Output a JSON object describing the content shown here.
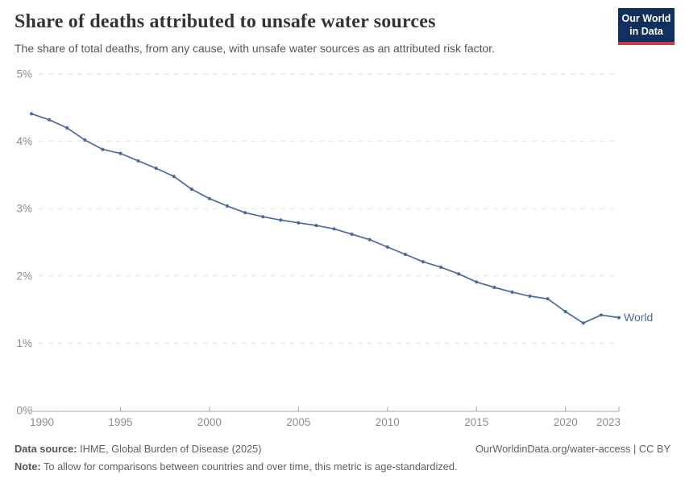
{
  "header": {
    "title": "Share of deaths attributed to unsafe water sources",
    "subtitle": "The share of total deaths, from any cause, with unsafe water sources as an attributed risk factor.",
    "logo": {
      "line1": "Our World",
      "line2": "in Data",
      "bg_color": "#12305e",
      "accent_color": "#cb3c4a"
    }
  },
  "chart_data": {
    "type": "line",
    "title": "Share of deaths attributed to unsafe water sources",
    "xlabel": "",
    "ylabel": "",
    "xlim": [
      1990,
      2023
    ],
    "ylim": [
      0,
      5
    ],
    "grid": "horizontal-dashed",
    "legend_position": "end-of-line",
    "x_ticks": [
      1990,
      1995,
      2000,
      2005,
      2010,
      2015,
      2020,
      2023
    ],
    "y_ticks": [
      "0%",
      "1%",
      "2%",
      "3%",
      "4%",
      "5%"
    ],
    "x": [
      1990,
      1991,
      1992,
      1993,
      1994,
      1995,
      1996,
      1997,
      1998,
      1999,
      2000,
      2001,
      2002,
      2003,
      2004,
      2005,
      2006,
      2007,
      2008,
      2009,
      2010,
      2011,
      2012,
      2013,
      2014,
      2015,
      2016,
      2017,
      2018,
      2019,
      2020,
      2021,
      2022,
      2023
    ],
    "series": [
      {
        "name": "World",
        "color": "#4c6a9d",
        "values": [
          4.41,
          4.32,
          4.2,
          4.02,
          3.88,
          3.82,
          3.71,
          3.6,
          3.48,
          3.29,
          3.15,
          3.04,
          2.94,
          2.88,
          2.83,
          2.79,
          2.75,
          2.7,
          2.62,
          2.54,
          2.43,
          2.32,
          2.21,
          2.13,
          2.03,
          1.91,
          1.83,
          1.76,
          1.7,
          1.66,
          1.47,
          1.3,
          1.42,
          1.38
        ]
      }
    ]
  },
  "footer": {
    "source_label": "Data source:",
    "source_text": " IHME, Global Burden of Disease (2025)",
    "rights": "OurWorldinData.org/water-access | CC BY",
    "note_label": "Note:",
    "note_text": " To allow for comparisons between countries and over time, this metric is age-standardized."
  }
}
